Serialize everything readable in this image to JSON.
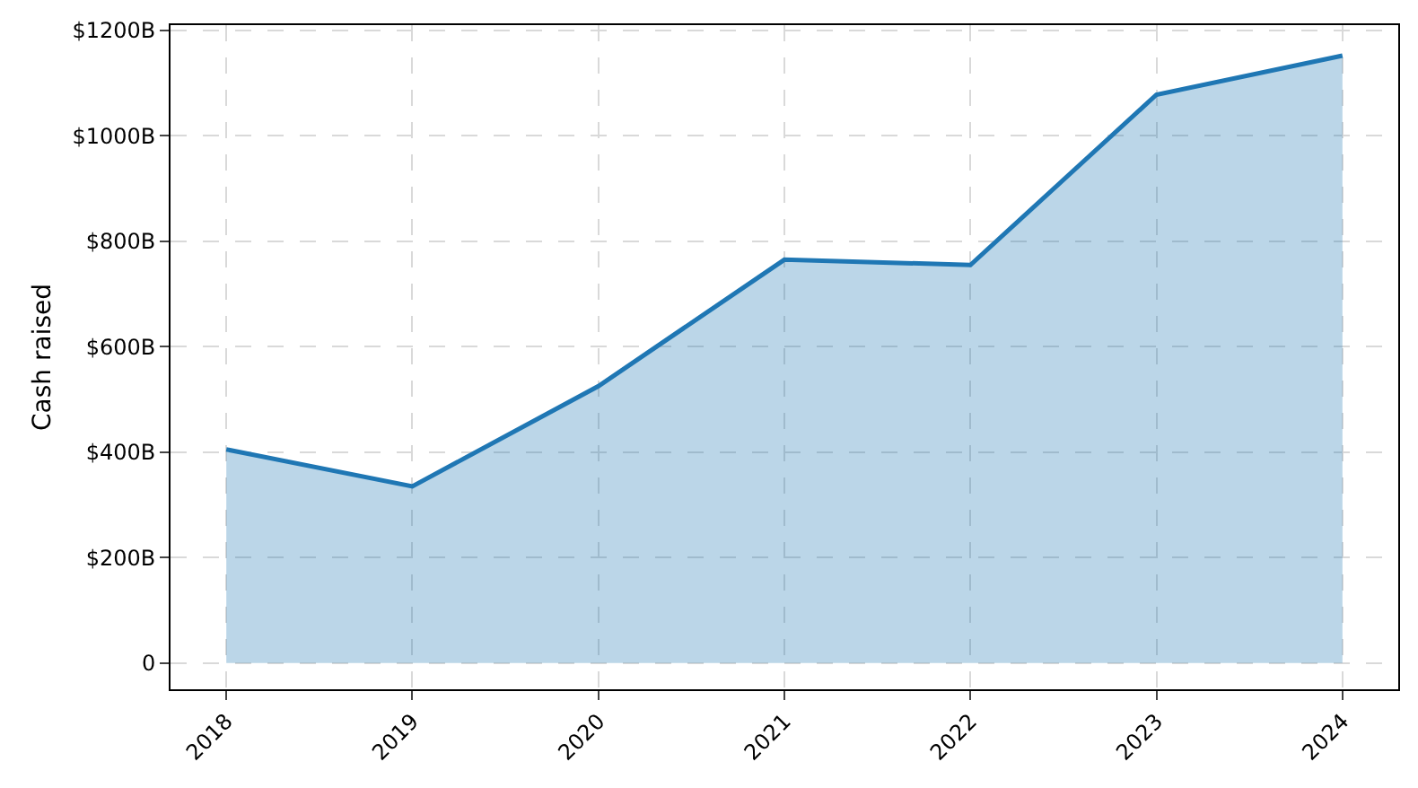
{
  "chart_data": {
    "type": "area",
    "ylabel": "Cash raised",
    "categories": [
      "2018",
      "2019",
      "2020",
      "2021",
      "2022",
      "2023",
      "2024"
    ],
    "series": [
      {
        "color": "#1f77b4",
        "values": [
          405,
          335,
          525,
          765,
          755,
          1078,
          1152
        ]
      }
    ],
    "ylim": [
      -50,
      1210
    ],
    "yticks": [
      0,
      {
        "value": 200,
        "label": "$200B"
      },
      {
        "value": 400,
        "label": "$400B"
      },
      {
        "value": 600,
        "label": "$600B"
      },
      {
        "value": 800,
        "label": "$800B"
      },
      {
        "value": 1000,
        "label": "$1000B"
      },
      {
        "value": 1200,
        "label": "$1200B"
      }
    ],
    "grid": true,
    "line_style": "solid",
    "marker": "none"
  }
}
